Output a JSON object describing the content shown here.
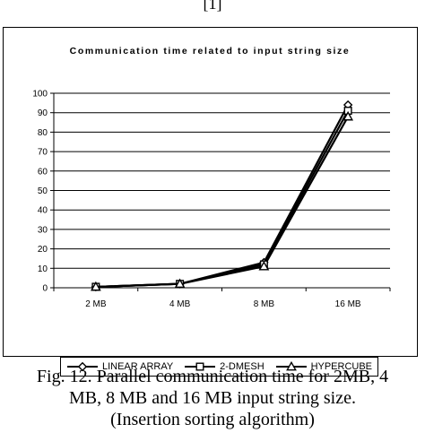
{
  "top_text": "[1]",
  "chart_data": {
    "type": "line",
    "title": "Communication time related to input string size",
    "xlabel": "",
    "ylabel": "",
    "categories": [
      "2 MB",
      "4 MB",
      "8 MB",
      "16 MB"
    ],
    "ylim": [
      0,
      100
    ],
    "yticks": [
      0,
      10,
      20,
      30,
      40,
      50,
      60,
      70,
      80,
      90,
      100
    ],
    "grid": "horizontal",
    "legend_position": "bottom",
    "series": [
      {
        "name": "LINEAR ARRAY",
        "marker": "diamond",
        "values": [
          0.5,
          2,
          13,
          94
        ]
      },
      {
        "name": "2-DMESH",
        "marker": "square",
        "values": [
          0.5,
          2,
          12,
          91
        ]
      },
      {
        "name": "HYPERCUBE",
        "marker": "triangle",
        "values": [
          0.5,
          2,
          11,
          88
        ]
      }
    ],
    "colors": {
      "line": "#000000",
      "grid": "#000000",
      "marker_fill": "#ffffff"
    }
  },
  "caption": {
    "line1": "Fig. 12. Parallel communication time for 2MB, 4",
    "line2": "MB, 8 MB and 16 MB input string size.",
    "line3": "(Insertion sorting algorithm)"
  }
}
